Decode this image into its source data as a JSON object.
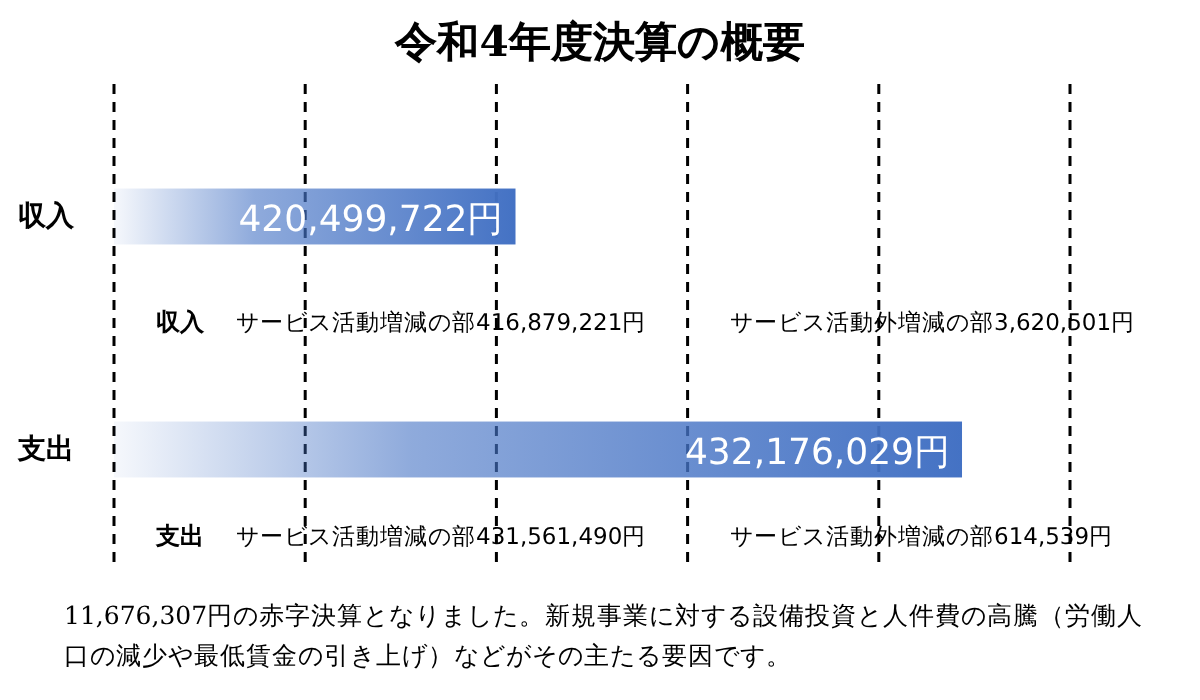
{
  "chart_data": {
    "type": "bar",
    "orientation": "horizontal",
    "title": "令和4年度決算の概要",
    "categories": [
      "収入",
      "支出"
    ],
    "values": [
      420499722,
      432176029
    ],
    "value_labels": [
      "420,499,722円",
      "432,176,029円"
    ],
    "color": "#4472c4",
    "xlim": [
      410000000,
      435000000
    ],
    "xticks": [
      {
        "value": 410000000,
        "label": null
      },
      {
        "value": 415000000,
        "label": null
      },
      {
        "value": 420000000,
        "label": null
      },
      {
        "value": 425000000,
        "label": null
      },
      {
        "value": 430000000,
        "label": null
      },
      {
        "value": 435000000,
        "label": null
      }
    ],
    "grid": "x",
    "tick_labels": "y",
    "annotations": [
      "収入",
      "サービス活動増減の部416,879,221円",
      "サービス活動外増減の部3,620,501円",
      "支出",
      "サービス活動増減の部431,561,490円",
      "サービス活動外増減の部614,539円",
      "11,676,307円の赤字決算となりました。新規事業に対する設備投資と人件費の高騰（労働人口の減少や最低賃金の引き上げ）などがその主たる要因です。"
    ]
  }
}
